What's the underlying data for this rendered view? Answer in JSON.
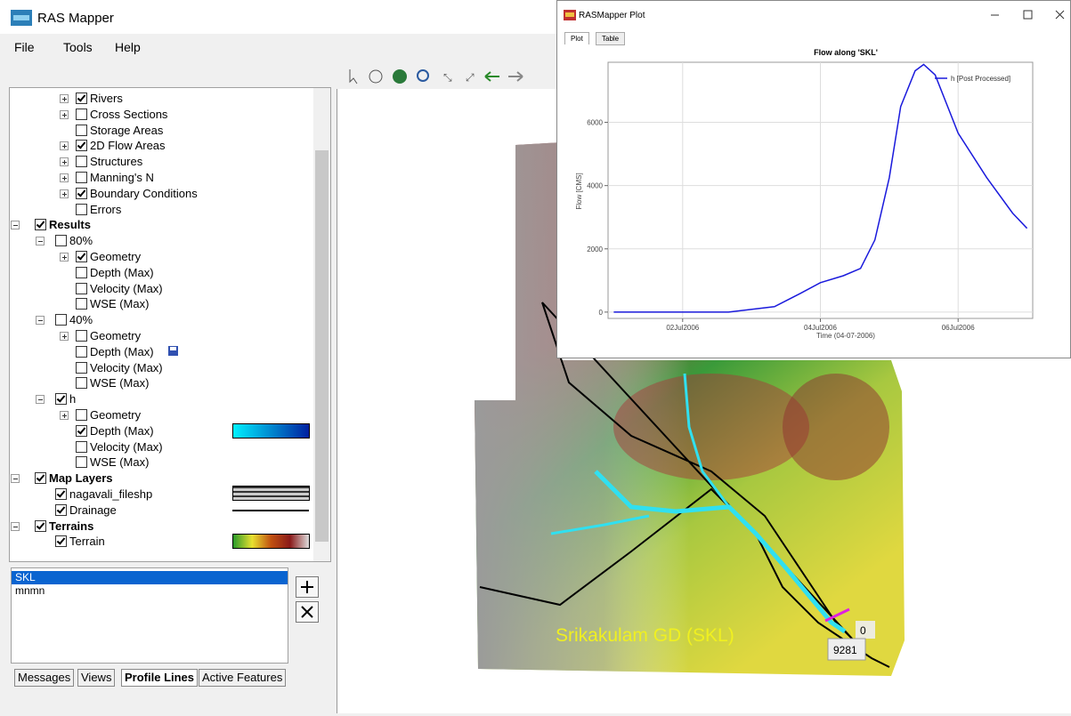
{
  "window": {
    "title": "RAS Mapper",
    "menu": [
      "File",
      "Tools",
      "Help"
    ]
  },
  "layers": {
    "geometry_children": [
      {
        "label": "Rivers",
        "checked": true,
        "expanded": false
      },
      {
        "label": "Cross Sections",
        "checked": false,
        "expanded": false
      },
      {
        "label": "Storage Areas",
        "checked": false
      },
      {
        "label": "2D Flow Areas",
        "checked": true,
        "expanded": false
      },
      {
        "label": "Structures",
        "checked": false,
        "expanded": false
      },
      {
        "label": "Manning's N",
        "checked": false,
        "expanded": false
      },
      {
        "label": "Boundary Conditions",
        "checked": true,
        "expanded": false
      },
      {
        "label": "Errors",
        "checked": false
      }
    ],
    "roots": [
      {
        "label": "Results",
        "checked": true,
        "children": [
          {
            "label": "80%",
            "checked": false,
            "children": [
              {
                "label": "Geometry",
                "checked": true,
                "expanded": false
              },
              {
                "label": "Depth (Max)",
                "checked": false
              },
              {
                "label": "Velocity (Max)",
                "checked": false
              },
              {
                "label": "WSE (Max)",
                "checked": false
              }
            ]
          },
          {
            "label": "40%",
            "checked": false,
            "children": [
              {
                "label": "Geometry",
                "checked": false,
                "expanded": false
              },
              {
                "label": "Depth (Max)",
                "checked": false
              },
              {
                "label": "Velocity (Max)",
                "checked": false
              },
              {
                "label": "WSE (Max)",
                "checked": false
              }
            ]
          },
          {
            "label": "h",
            "checked": true,
            "children": [
              {
                "label": "Geometry",
                "checked": false,
                "expanded": false
              },
              {
                "label": "Depth (Max)",
                "checked": true
              },
              {
                "label": "Velocity (Max)",
                "checked": false
              },
              {
                "label": "WSE (Max)",
                "checked": false
              }
            ]
          }
        ]
      },
      {
        "label": "Map Layers",
        "checked": true,
        "children": [
          {
            "label": "nagavali_fileshp",
            "checked": true
          },
          {
            "label": "Drainage",
            "checked": true
          }
        ]
      },
      {
        "label": "Terrains",
        "checked": true,
        "children": [
          {
            "label": "Terrain",
            "checked": true
          }
        ]
      }
    ]
  },
  "profile_lines": {
    "items": [
      "SKL",
      "mnmn"
    ],
    "selected": 0
  },
  "tabs": {
    "items": [
      "Messages",
      "Views",
      "Profile Lines",
      "Active Features"
    ],
    "active": 2
  },
  "map": {
    "label": "Srikakulam GD (SKL)",
    "start_station": "0",
    "end_station": "9281"
  },
  "plot_window": {
    "title": "RASMapper Plot",
    "tabs": [
      "Plot",
      "Table"
    ],
    "active_tab": 0
  },
  "chart_data": {
    "type": "line",
    "title": "Flow along 'SKL'",
    "xlabel": "Time (04-07-2006)",
    "ylabel": "Flow [CMS]",
    "x": [
      "2006-07-01T00:00",
      "2006-07-02T16:00",
      "2006-07-03T08:00",
      "2006-07-03T17:00",
      "2006-07-04T00:00",
      "2006-07-04T08:00",
      "2006-07-04T14:00",
      "2006-07-04T19:00",
      "2006-07-05T00:00",
      "2006-07-05T04:00",
      "2006-07-05T09:00",
      "2006-07-05T12:00",
      "2006-07-05T16:00",
      "2006-07-06T00:00",
      "2006-07-06T10:00",
      "2006-07-06T19:00",
      "2006-07-07T00:00"
    ],
    "series": [
      {
        "name": "h [Post Processed]",
        "color": "#1a1adc",
        "values": [
          0,
          0,
          170,
          590,
          930,
          1150,
          1380,
          2280,
          4250,
          6500,
          7630,
          7830,
          7500,
          5660,
          4250,
          3130,
          2650
        ]
      }
    ],
    "xlim": [
      "2006-06-30T22:00",
      "2006-07-07T02:00"
    ],
    "xticks": [
      {
        "value": "2006-07-02T00:00",
        "label": "02Jul2006"
      },
      {
        "value": "2006-07-04T00:00",
        "label": "04Jul2006"
      },
      {
        "value": "2006-07-06T00:00",
        "label": "06Jul2006"
      }
    ],
    "ylim": [
      -200,
      7900
    ],
    "yticks": [
      0,
      2000,
      4000,
      6000
    ],
    "grid": true,
    "legend": "upper right"
  }
}
